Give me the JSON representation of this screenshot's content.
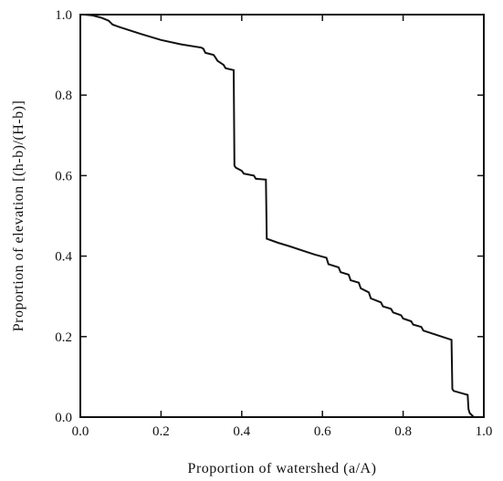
{
  "chart_data": {
    "type": "line",
    "title": "",
    "xlabel": "Proportion of watershed (a/A)",
    "ylabel": "Proportion of elevation [(h-b)/(H-b)]",
    "xlim": [
      0,
      1
    ],
    "ylim": [
      0,
      1
    ],
    "xticks": [
      0.0,
      0.2,
      0.4,
      0.6,
      0.8,
      1.0
    ],
    "yticks": [
      0.0,
      0.2,
      0.4,
      0.6,
      0.8,
      1.0
    ],
    "xtick_labels": [
      "0.0",
      "0.2",
      "0.4",
      "0.6",
      "0.8",
      "1.0"
    ],
    "ytick_labels": [
      "0.0",
      "0.2",
      "0.4",
      "0.6",
      "0.8",
      "1.0"
    ],
    "grid": false,
    "series": [
      {
        "x": [
          0.0,
          0.01,
          0.03,
          0.05,
          0.07,
          0.075,
          0.08,
          0.1,
          0.15,
          0.2,
          0.25,
          0.3,
          0.305,
          0.31,
          0.33,
          0.335,
          0.34,
          0.355,
          0.36,
          0.38,
          0.382,
          0.385,
          0.4,
          0.405,
          0.43,
          0.435,
          0.46,
          0.462,
          0.49,
          0.52,
          0.55,
          0.58,
          0.61,
          0.615,
          0.64,
          0.645,
          0.665,
          0.67,
          0.69,
          0.695,
          0.715,
          0.72,
          0.745,
          0.75,
          0.77,
          0.775,
          0.795,
          0.8,
          0.82,
          0.825,
          0.845,
          0.85,
          0.88,
          0.92,
          0.922,
          0.925,
          0.96,
          0.962,
          0.965,
          0.975
        ],
        "y": [
          1.0,
          1.0,
          0.998,
          0.993,
          0.985,
          0.98,
          0.975,
          0.968,
          0.952,
          0.937,
          0.926,
          0.918,
          0.915,
          0.905,
          0.9,
          0.893,
          0.885,
          0.875,
          0.867,
          0.862,
          0.625,
          0.62,
          0.612,
          0.605,
          0.6,
          0.592,
          0.59,
          0.443,
          0.433,
          0.424,
          0.414,
          0.404,
          0.396,
          0.38,
          0.372,
          0.36,
          0.354,
          0.34,
          0.334,
          0.32,
          0.31,
          0.295,
          0.285,
          0.275,
          0.269,
          0.26,
          0.253,
          0.245,
          0.238,
          0.23,
          0.224,
          0.215,
          0.205,
          0.192,
          0.07,
          0.065,
          0.055,
          0.02,
          0.01,
          0.0
        ]
      }
    ]
  }
}
